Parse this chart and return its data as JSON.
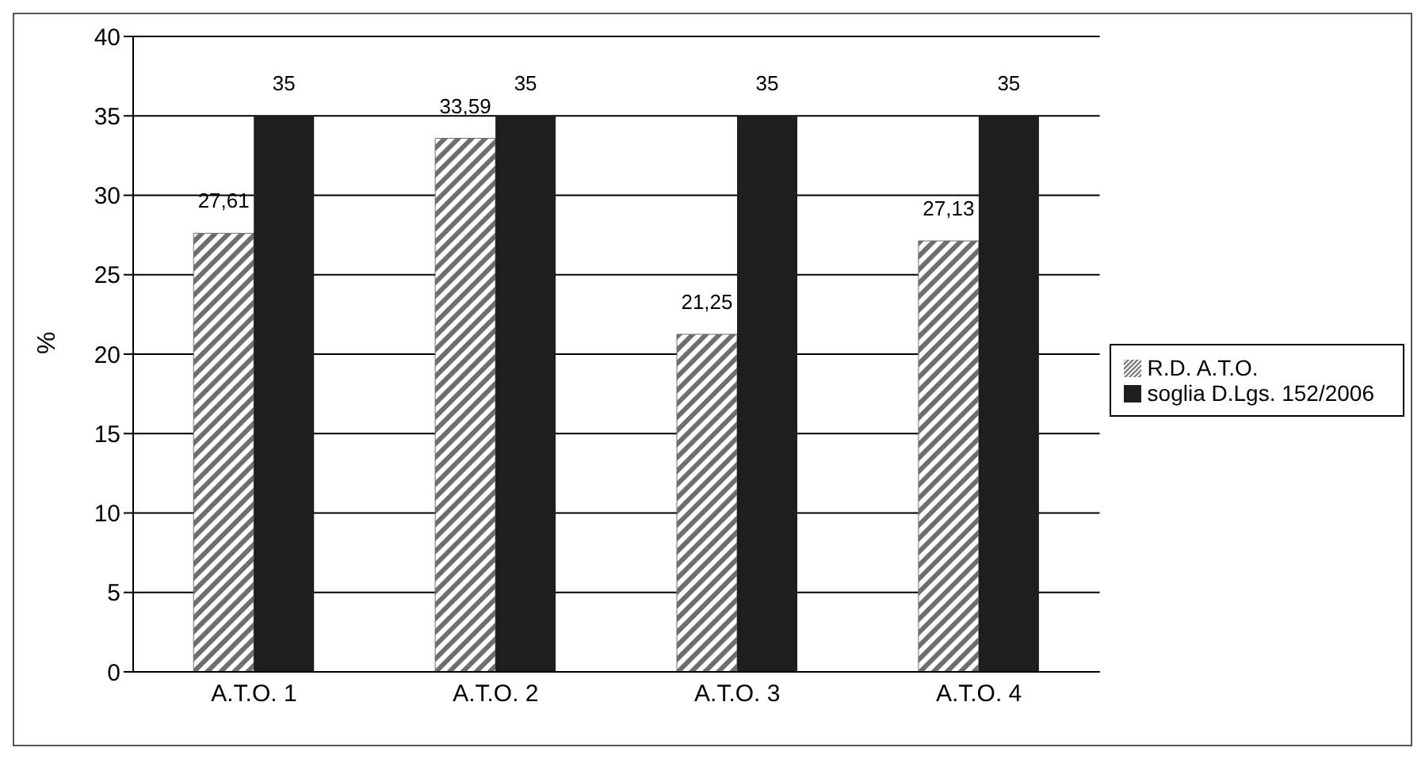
{
  "chart_data": {
    "type": "bar",
    "ylabel": "%",
    "categories": [
      "A.T.O. 1",
      "A.T.O. 2",
      "A.T.O. 3",
      "A.T.O. 4"
    ],
    "series": [
      {
        "name": "R.D. A.T.O.",
        "color": "#6e6e6e",
        "values": [
          27.61,
          33.59,
          21.25,
          27.13
        ],
        "value_labels": [
          "27,61",
          "33,59",
          "21,25",
          "27,13"
        ]
      },
      {
        "name": "soglia D.Lgs. 152/2006",
        "color": "#1e1e1e",
        "values": [
          35,
          35,
          35,
          35
        ],
        "value_labels": [
          "35",
          "35",
          "35",
          "35"
        ]
      }
    ],
    "ylim": [
      0,
      40
    ],
    "yticks": [
      0,
      5,
      10,
      15,
      20,
      25,
      30,
      35,
      40
    ],
    "grid": "y",
    "legend": "right"
  }
}
